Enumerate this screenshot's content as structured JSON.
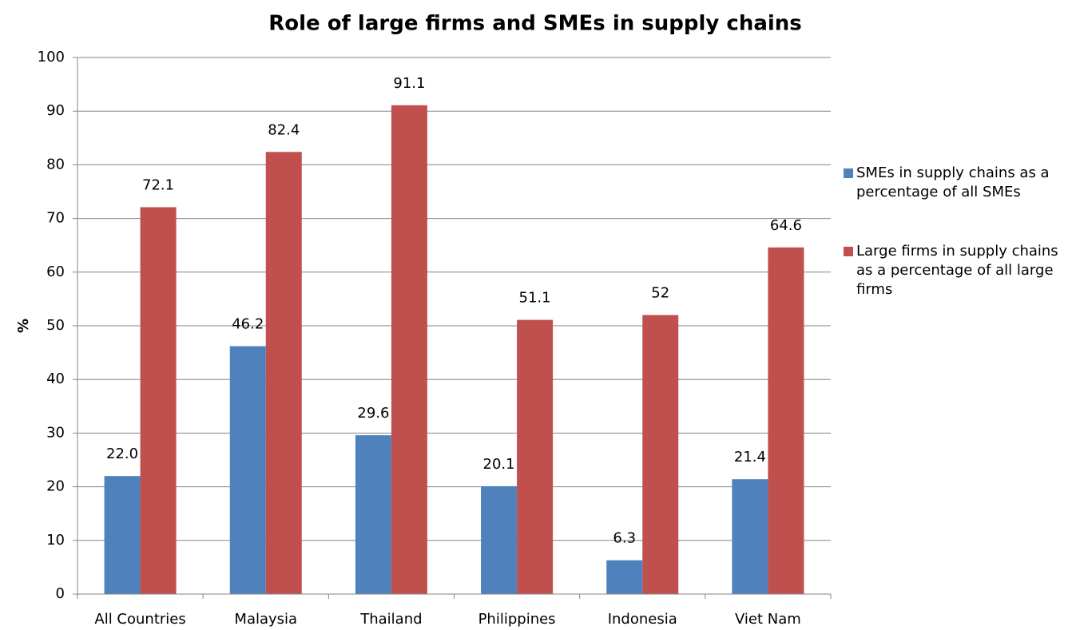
{
  "chart_data": {
    "type": "bar",
    "title": "Role of large firms and SMEs in supply chains",
    "y_label": "%",
    "categories": [
      "All Countries",
      "Malaysia",
      "Thailand",
      "Philippines",
      "Indonesia",
      "Viet Nam"
    ],
    "series": [
      {
        "name": "SMEs in supply chains as a percentage of all SMEs",
        "color": "#4f81bd",
        "values": [
          22.0,
          46.2,
          29.6,
          20.1,
          6.3,
          21.4
        ],
        "value_labels": [
          "22.0",
          "46.2",
          "29.6",
          "20.1",
          "6.3",
          "21.4"
        ]
      },
      {
        "name": "Large firms in supply chains as a percentage of all large firms",
        "color": "#c0504d",
        "values": [
          72.1,
          82.4,
          91.1,
          51.1,
          52,
          64.6
        ],
        "value_labels": [
          "72.1",
          "82.4",
          "91.1",
          "51.1",
          "52",
          "64.6"
        ]
      }
    ],
    "ylim": [
      0,
      100
    ],
    "yticks": [
      0,
      10,
      20,
      30,
      40,
      50,
      60,
      70,
      80,
      90,
      100
    ],
    "grid": true,
    "legend": "right"
  }
}
